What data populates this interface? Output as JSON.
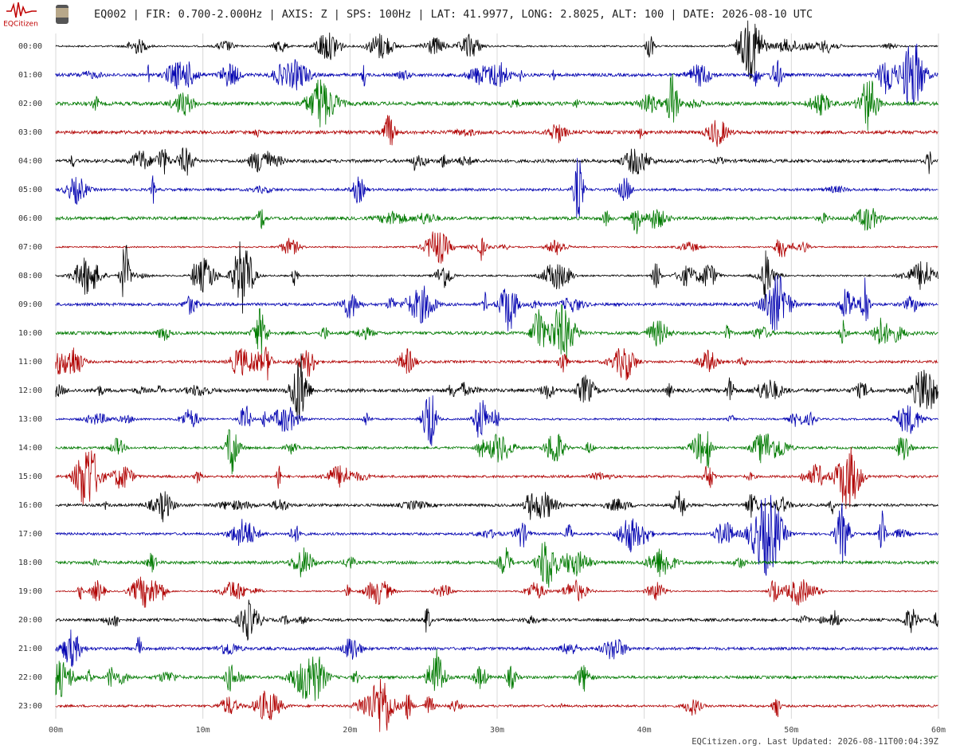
{
  "chart_data": {
    "type": "helicorder",
    "title": "EQ002 | FIR: 0.700-2.000Hz | AXIS: Z | SPS: 100Hz | LAT: 41.9977, LONG: 2.8025, ALT: 100 | DATE: 2026-08-10 UTC",
    "logo": "EQCitizen",
    "footer": "EQCitizen.org. Last Updated: 2026-08-11T00:04:39Z",
    "categories": [
      "00:00",
      "01:00",
      "02:00",
      "03:00",
      "04:00",
      "05:00",
      "06:00",
      "07:00",
      "08:00",
      "09:00",
      "10:00",
      "11:00",
      "12:00",
      "13:00",
      "14:00",
      "15:00",
      "16:00",
      "17:00",
      "18:00",
      "19:00",
      "20:00",
      "21:00",
      "22:00",
      "23:00"
    ],
    "colors": [
      "#000000",
      "#0000b0",
      "#007a00",
      "#b00000"
    ],
    "xlim": [
      0,
      60
    ],
    "xticks": [
      {
        "value": 0,
        "label": "00m"
      },
      {
        "value": 10,
        "label": "10m"
      },
      {
        "value": 20,
        "label": "20m"
      },
      {
        "value": 30,
        "label": "30m"
      },
      {
        "value": 40,
        "label": "40m"
      },
      {
        "value": 50,
        "label": "50m"
      },
      {
        "value": 60,
        "label": "60m"
      }
    ],
    "grid": true
  }
}
